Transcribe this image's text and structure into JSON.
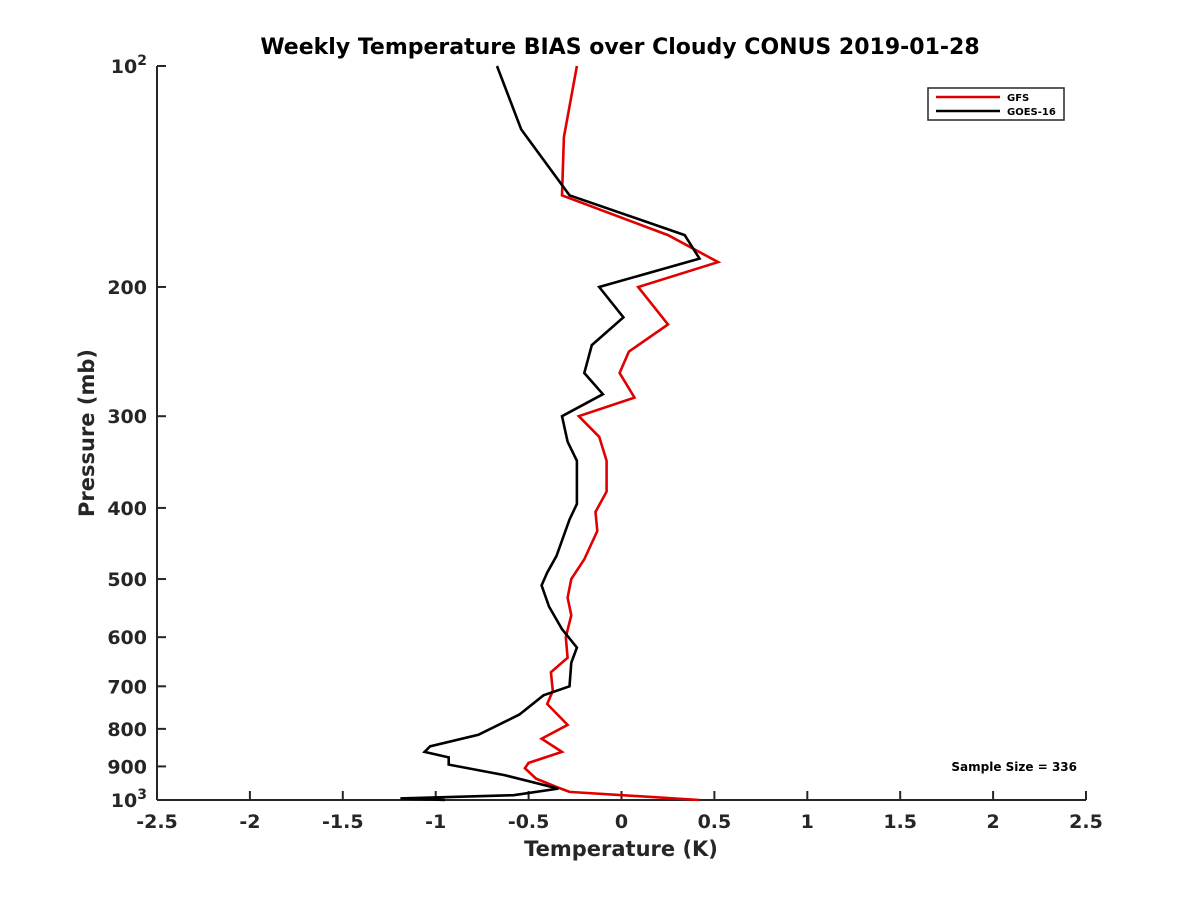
{
  "chart_data": {
    "type": "line",
    "title": "Weekly Temperature BIAS over Cloudy CONUS 2019-01-28",
    "xlabel": "Temperature (K)",
    "ylabel": "Pressure (mb)",
    "xlim": [
      -2.5,
      2.5
    ],
    "ylim": [
      100,
      1000
    ],
    "y_scale": "log",
    "y_reversed": true,
    "grid": false,
    "legend_position": "top-right",
    "x_tick_labels": [
      "-2.5",
      "-2",
      "-1.5",
      "-1",
      "-0.5",
      "0",
      "0.5",
      "1",
      "1.5",
      "2",
      "2.5"
    ],
    "y_tick_labels": [
      {
        "base": "10",
        "exp": "2"
      },
      {
        "text": "200"
      },
      {
        "text": "300"
      },
      {
        "text": "400"
      },
      {
        "text": "500"
      },
      {
        "text": "600"
      },
      {
        "text": "700"
      },
      {
        "text": "800"
      },
      {
        "text": "900"
      },
      {
        "base": "10",
        "exp": "3"
      }
    ],
    "x_tick_values": [
      -2.5,
      -2,
      -1.5,
      -1,
      -0.5,
      0,
      0.5,
      1,
      1.5,
      2,
      2.5
    ],
    "y_tick_values": [
      100,
      200,
      300,
      400,
      500,
      600,
      700,
      800,
      900,
      1000
    ],
    "annotation": "Sample Size = 336",
    "series": [
      {
        "name": "GFS",
        "color": "#e00000",
        "points": [
          [
            -0.24,
            100
          ],
          [
            -0.31,
            125
          ],
          [
            -0.32,
            150
          ],
          [
            0.25,
            170
          ],
          [
            0.52,
            185
          ],
          [
            0.09,
            200
          ],
          [
            0.25,
            225
          ],
          [
            0.04,
            245
          ],
          [
            -0.01,
            262
          ],
          [
            0.07,
            283
          ],
          [
            -0.23,
            300
          ],
          [
            -0.12,
            320
          ],
          [
            -0.08,
            345
          ],
          [
            -0.08,
            380
          ],
          [
            -0.14,
            405
          ],
          [
            -0.13,
            430
          ],
          [
            -0.2,
            470
          ],
          [
            -0.27,
            500
          ],
          [
            -0.29,
            530
          ],
          [
            -0.27,
            560
          ],
          [
            -0.3,
            600
          ],
          [
            -0.29,
            640
          ],
          [
            -0.38,
            670
          ],
          [
            -0.37,
            710
          ],
          [
            -0.4,
            740
          ],
          [
            -0.29,
            790
          ],
          [
            -0.43,
            825
          ],
          [
            -0.32,
            860
          ],
          [
            -0.5,
            890
          ],
          [
            -0.52,
            905
          ],
          [
            -0.46,
            935
          ],
          [
            -0.35,
            960
          ],
          [
            -0.28,
            975
          ],
          [
            0.42,
            1000
          ]
        ]
      },
      {
        "name": "GOES-16",
        "color": "#000000",
        "points": [
          [
            -0.67,
            100
          ],
          [
            -0.54,
            122
          ],
          [
            -0.28,
            150
          ],
          [
            0.34,
            170
          ],
          [
            0.42,
            183
          ],
          [
            -0.12,
            200
          ],
          [
            0.01,
            220
          ],
          [
            -0.16,
            240
          ],
          [
            -0.2,
            262
          ],
          [
            -0.1,
            280
          ],
          [
            -0.32,
            300
          ],
          [
            -0.29,
            325
          ],
          [
            -0.24,
            345
          ],
          [
            -0.24,
            395
          ],
          [
            -0.28,
            415
          ],
          [
            -0.35,
            465
          ],
          [
            -0.4,
            490
          ],
          [
            -0.43,
            510
          ],
          [
            -0.39,
            545
          ],
          [
            -0.32,
            585
          ],
          [
            -0.24,
            620
          ],
          [
            -0.27,
            650
          ],
          [
            -0.28,
            700
          ],
          [
            -0.42,
            720
          ],
          [
            -0.55,
            765
          ],
          [
            -0.77,
            815
          ],
          [
            -1.03,
            845
          ],
          [
            -1.06,
            860
          ],
          [
            -0.93,
            875
          ],
          [
            -0.93,
            895
          ],
          [
            -0.63,
            925
          ],
          [
            -0.34,
            965
          ],
          [
            -0.58,
            985
          ],
          [
            -1.19,
            995
          ],
          [
            -0.95,
            1000
          ]
        ]
      }
    ]
  }
}
